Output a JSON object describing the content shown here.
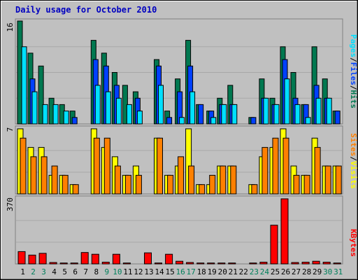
{
  "title": "Daily usage for October 2010",
  "colors": {
    "hits": "#007850",
    "files": "#0040ff",
    "pages": "#00e0ff",
    "visits": "#ff8000",
    "sites": "#ffff00",
    "kbytes": "#ff0000",
    "day_normal": "#000000",
    "day_weekend": "#00805c"
  },
  "chart_data": [
    {
      "type": "bar",
      "title": "Daily usage for October 2010",
      "categories": [
        "1",
        "2",
        "3",
        "4",
        "5",
        "6",
        "7",
        "8",
        "9",
        "10",
        "11",
        "12",
        "13",
        "14",
        "15",
        "16",
        "17",
        "18",
        "19",
        "20",
        "21",
        "22",
        "23",
        "24",
        "25",
        "26",
        "27",
        "28",
        "29",
        "30",
        "31"
      ],
      "weekend_days": [
        "2",
        "3",
        "9",
        "10",
        "16",
        "17",
        "23",
        "24",
        "30",
        "31"
      ],
      "ymax_label": "16",
      "ylim": [
        0,
        16
      ],
      "ylabel_parts": [
        "Pages",
        "/",
        "Files",
        "/",
        "Hits"
      ],
      "series": [
        {
          "name": "Hits",
          "values": [
            16,
            11,
            9,
            4,
            3,
            2,
            0,
            13,
            11,
            8,
            6,
            5,
            0,
            10,
            2,
            7,
            13,
            3,
            2,
            4,
            6,
            0,
            1,
            7,
            4,
            12,
            8,
            3,
            12,
            7,
            2
          ]
        },
        {
          "name": "Files",
          "values": [
            0,
            7,
            0,
            0,
            0,
            1,
            0,
            10,
            9,
            6,
            0,
            4,
            0,
            9,
            1,
            5,
            9,
            3,
            2,
            3,
            3,
            0,
            1,
            4,
            3,
            10,
            4,
            3,
            6,
            4,
            2
          ]
        },
        {
          "name": "Pages",
          "values": [
            12,
            5,
            3,
            3,
            2,
            0,
            0,
            6,
            5,
            4,
            3,
            2,
            0,
            6,
            0,
            1,
            5,
            0,
            1,
            3,
            3,
            0,
            0,
            4,
            3,
            7,
            3,
            1,
            4,
            4,
            0
          ]
        }
      ]
    },
    {
      "type": "bar",
      "categories": [
        "1",
        "2",
        "3",
        "4",
        "5",
        "6",
        "7",
        "8",
        "9",
        "10",
        "11",
        "12",
        "13",
        "14",
        "15",
        "16",
        "17",
        "18",
        "19",
        "20",
        "21",
        "22",
        "23",
        "24",
        "25",
        "26",
        "27",
        "28",
        "29",
        "30",
        "31"
      ],
      "ymax_label": "7",
      "ylim": [
        0,
        7
      ],
      "ylabel_parts": [
        "Sites",
        "/",
        "Visits"
      ],
      "series": [
        {
          "name": "Visits",
          "values": [
            7,
            5,
            5,
            2,
            2,
            1,
            0,
            7,
            5,
            4,
            2,
            3,
            0,
            6,
            2,
            3,
            7,
            1,
            1,
            3,
            3,
            0,
            1,
            4,
            5,
            7,
            3,
            2,
            6,
            3,
            3
          ]
        },
        {
          "name": "Sites",
          "values": [
            6,
            4,
            4,
            3,
            2,
            1,
            0,
            6,
            6,
            3,
            2,
            2,
            0,
            6,
            2,
            4,
            3,
            1,
            2,
            3,
            3,
            0,
            1,
            5,
            6,
            6,
            2,
            2,
            5,
            3,
            3
          ]
        }
      ]
    },
    {
      "type": "bar",
      "categories": [
        "1",
        "2",
        "3",
        "4",
        "5",
        "6",
        "7",
        "8",
        "9",
        "10",
        "11",
        "12",
        "13",
        "14",
        "15",
        "16",
        "17",
        "18",
        "19",
        "20",
        "21",
        "22",
        "23",
        "24",
        "25",
        "26",
        "27",
        "28",
        "29",
        "30",
        "31"
      ],
      "ymax_label": "370",
      "ylim": [
        0,
        370
      ],
      "ylabel": "KBytes",
      "series": [
        {
          "name": "KBytes",
          "values": [
            70,
            50,
            60,
            8,
            5,
            5,
            65,
            55,
            10,
            55,
            5,
            0,
            63,
            5,
            55,
            15,
            8,
            5,
            5,
            5,
            5,
            0,
            5,
            10,
            220,
            370,
            8,
            10,
            15,
            10,
            5
          ]
        }
      ]
    }
  ]
}
